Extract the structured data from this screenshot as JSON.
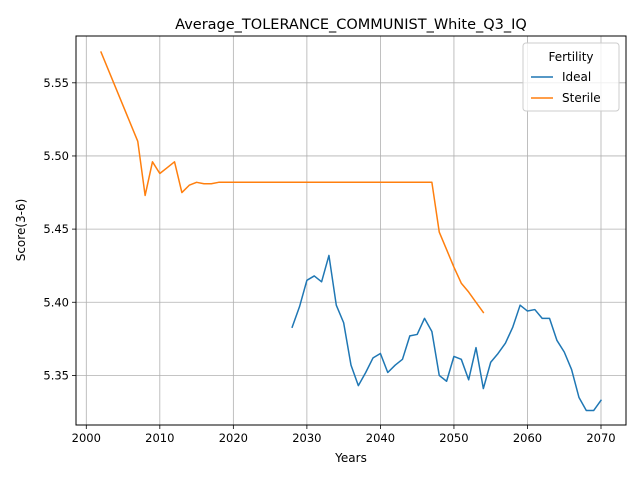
{
  "chart_data": {
    "type": "line",
    "title": "Average_TOLERANCE_COMMUNIST_White_Q3_IQ",
    "xlabel": "Years",
    "ylabel": "Score(3-6)",
    "xlim": [
      1998.6,
      2073.4
    ],
    "ylim": [
      5.3161,
      5.582
    ],
    "xticks": [
      2000,
      2010,
      2020,
      2030,
      2040,
      2050,
      2060,
      2070
    ],
    "yticks": [
      5.35,
      5.4,
      5.45,
      5.5,
      5.55
    ],
    "ytick_labels": [
      "5.35",
      "5.40",
      "5.45",
      "5.50",
      "5.55"
    ],
    "grid": true,
    "legend": {
      "title": "Fertility",
      "position": "top-right"
    },
    "series": [
      {
        "name": "Ideal",
        "color": "#1f77b4",
        "x": [
          2028,
          2029,
          2030,
          2031,
          2032,
          2033,
          2034,
          2035,
          2036,
          2037,
          2038,
          2039,
          2040,
          2041,
          2042,
          2043,
          2044,
          2045,
          2046,
          2047,
          2048,
          2049,
          2050,
          2051,
          2052,
          2053,
          2054,
          2055,
          2056,
          2057,
          2058,
          2059,
          2060,
          2061,
          2062,
          2063,
          2064,
          2065,
          2066,
          2067,
          2068,
          2069,
          2070
        ],
        "y": [
          5.383,
          5.397,
          5.415,
          5.418,
          5.414,
          5.432,
          5.398,
          5.386,
          5.357,
          5.343,
          5.352,
          5.362,
          5.365,
          5.352,
          5.357,
          5.361,
          5.377,
          5.378,
          5.389,
          5.38,
          5.35,
          5.346,
          5.363,
          5.361,
          5.347,
          5.369,
          5.341,
          5.359,
          5.365,
          5.372,
          5.383,
          5.398,
          5.394,
          5.395,
          5.389,
          5.389,
          5.374,
          5.366,
          5.354,
          5.335,
          5.326,
          5.326,
          5.333
        ]
      },
      {
        "name": "Sterile",
        "color": "#ff7f0e",
        "x": [
          2002,
          2007,
          2008,
          2009,
          2010,
          2011,
          2012,
          2013,
          2014,
          2015,
          2016,
          2017,
          2018,
          2019,
          2020,
          2025,
          2030,
          2035,
          2040,
          2045,
          2046,
          2047,
          2048,
          2049,
          2050,
          2051,
          2052,
          2053,
          2054
        ],
        "y": [
          5.571,
          5.51,
          5.473,
          5.496,
          5.488,
          5.492,
          5.496,
          5.475,
          5.48,
          5.482,
          5.481,
          5.481,
          5.482,
          5.482,
          5.482,
          5.482,
          5.482,
          5.482,
          5.482,
          5.482,
          5.482,
          5.482,
          5.448,
          5.436,
          5.424,
          5.413,
          5.407,
          5.4,
          5.393
        ]
      }
    ]
  }
}
